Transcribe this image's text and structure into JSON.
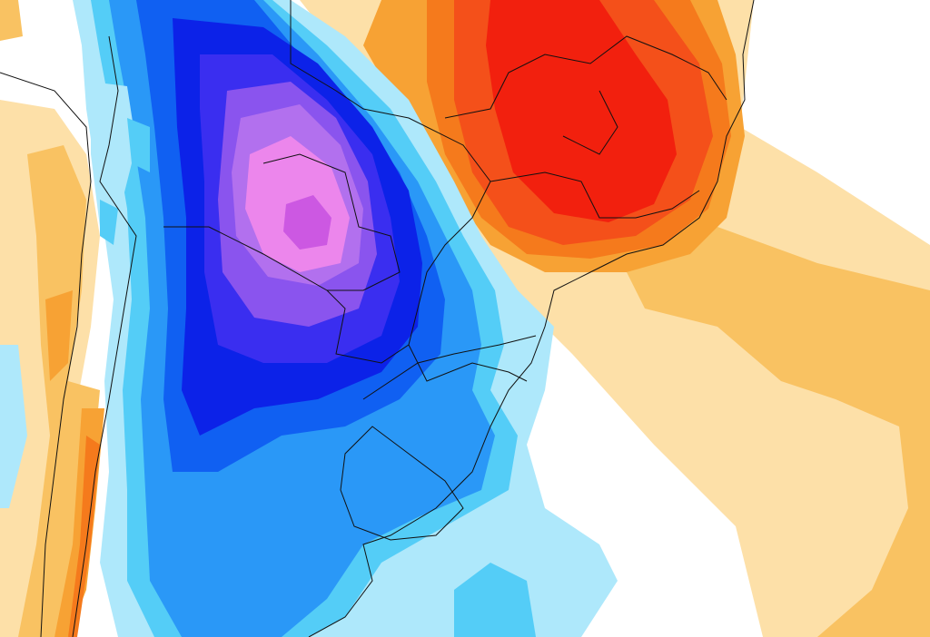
{
  "map": {
    "colors": {
      "background": "#ffffff",
      "tan_light": "#fde0a8",
      "tan": "#f9c262",
      "orange": "#f7a234",
      "orange_dark": "#f57a1c",
      "red_orange": "#f4501a",
      "red": "#f2200e",
      "cyan_light": "#aee8fb",
      "cyan": "#54cdf7",
      "sky_blue": "#2a98f7",
      "blue": "#1060f2",
      "blue_dark": "#0c22e8",
      "indigo": "#3a2ef0",
      "purple": "#8a54ee",
      "violet": "#b270ee",
      "pink": "#ec86ec",
      "magenta": "#cc58e2",
      "borders": "#111111"
    }
  }
}
